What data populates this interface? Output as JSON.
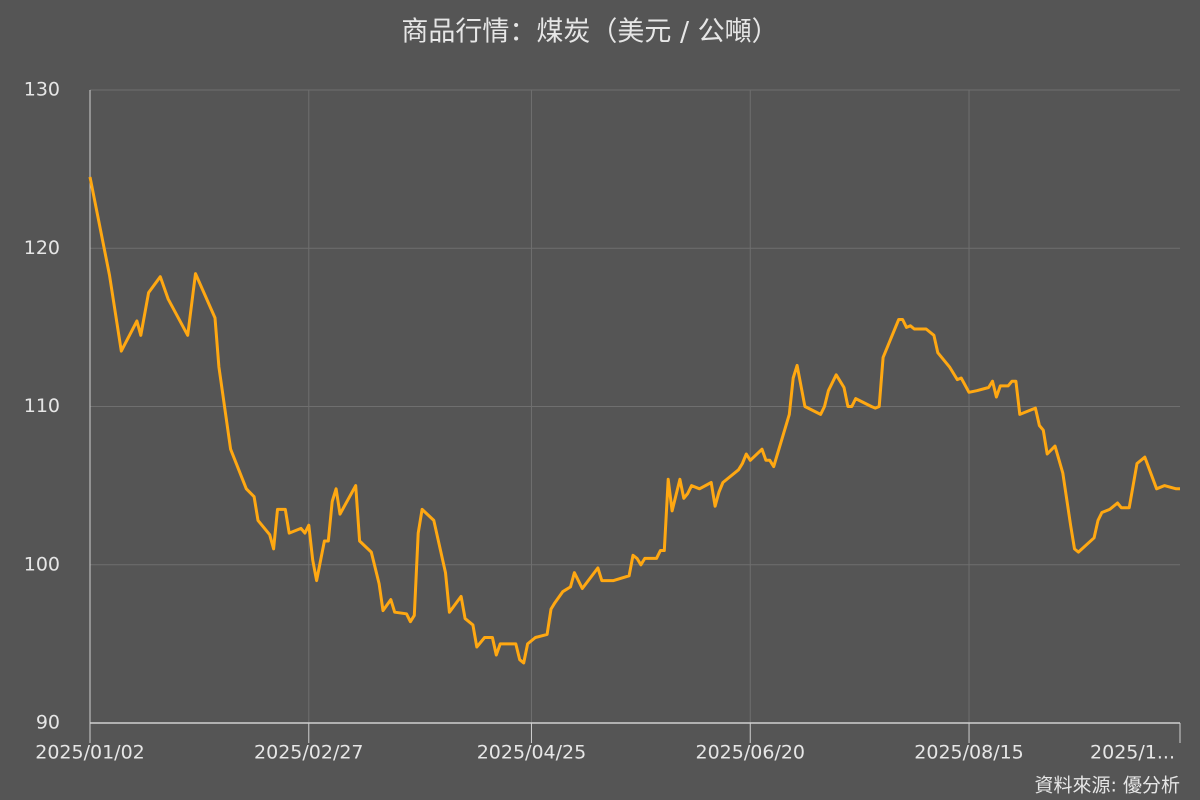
{
  "chart_data": {
    "type": "line",
    "title": "商品行情：煤炭（美元 / 公噸）",
    "source": "資料來源: 優分析",
    "xlim": [
      "2025/01/02",
      "2025/10/08"
    ],
    "xticks": [
      "2025/01/02",
      "2025/02/27",
      "2025/04/25",
      "2025/06/20",
      "2025/08/15",
      {
        "value": "2025/10/10",
        "label": "2025/1..."
      }
    ],
    "ylim": [
      90,
      130
    ],
    "yticks": [
      90,
      100,
      110,
      120,
      130
    ],
    "grid": true,
    "x": [
      "2025/01/02",
      "2025/01/07",
      "2025/01/10",
      "2025/01/14",
      "2025/01/15",
      "2025/01/17",
      "2025/01/20",
      "2025/01/22",
      "2025/01/27",
      "2025/01/29",
      "2025/02/03",
      "2025/02/04",
      "2025/02/07",
      "2025/02/11",
      "2025/02/13",
      "2025/02/14",
      "2025/02/17",
      "2025/02/18",
      "2025/02/19",
      "2025/02/21",
      "2025/02/22",
      "2025/02/25",
      "2025/02/26",
      "2025/02/27",
      "2025/02/28",
      "2025/03/01",
      "2025/03/03",
      "2025/03/04",
      "2025/03/05",
      "2025/03/06",
      "2025/03/07",
      "2025/03/11",
      "2025/03/12",
      "2025/03/15",
      "2025/03/17",
      "2025/03/18",
      "2025/03/20",
      "2025/03/21",
      "2025/03/24",
      "2025/03/25",
      "2025/03/26",
      "2025/03/27",
      "2025/03/28",
      "2025/03/31",
      "2025/04/03",
      "2025/04/04",
      "2025/04/07",
      "2025/04/08",
      "2025/04/10",
      "2025/04/11",
      "2025/04/13",
      "2025/04/15",
      "2025/04/16",
      "2025/04/17",
      "2025/04/21",
      "2025/04/22",
      "2025/04/23",
      "2025/04/24",
      "2025/04/26",
      "2025/04/29",
      "2025/04/30",
      "2025/05/01",
      "2025/05/03",
      "2025/05/05",
      "2025/05/06",
      "2025/05/08",
      "2025/05/12",
      "2025/05/13",
      "2025/05/16",
      "2025/05/20",
      "2025/05/21",
      "2025/05/22",
      "2025/05/23",
      "2025/05/24",
      "2025/05/27",
      "2025/05/28",
      "2025/05/29",
      "2025/05/30",
      "2025/05/31",
      "2025/06/02",
      "2025/06/03",
      "2025/06/04",
      "2025/06/05",
      "2025/06/07",
      "2025/06/10",
      "2025/06/11",
      "2025/06/12",
      "2025/06/13",
      "2025/06/17",
      "2025/06/18",
      "2025/06/19",
      "2025/06/20",
      "2025/06/23",
      "2025/06/24",
      "2025/06/25",
      "2025/06/26",
      "2025/06/30",
      "2025/07/01",
      "2025/07/02",
      "2025/07/04",
      "2025/07/08",
      "2025/07/09",
      "2025/07/10",
      "2025/07/12",
      "2025/07/14",
      "2025/07/15",
      "2025/07/16",
      "2025/07/17",
      "2025/07/21",
      "2025/07/22",
      "2025/07/23",
      "2025/07/24",
      "2025/07/28",
      "2025/07/29",
      "2025/07/30",
      "2025/07/31",
      "2025/08/01",
      "2025/08/04",
      "2025/08/06",
      "2025/08/07",
      "2025/08/10",
      "2025/08/12",
      "2025/08/13",
      "2025/08/15",
      "2025/08/17",
      "2025/08/20",
      "2025/08/21",
      "2025/08/22",
      "2025/08/23",
      "2025/08/25",
      "2025/08/26",
      "2025/08/27",
      "2025/08/28",
      "2025/09/01",
      "2025/09/02",
      "2025/09/03",
      "2025/09/04",
      "2025/09/06",
      "2025/09/08",
      "2025/09/10",
      "2025/09/11",
      "2025/09/12",
      "2025/09/16",
      "2025/09/17",
      "2025/09/18",
      "2025/09/20",
      "2025/09/22",
      "2025/09/23",
      "2025/09/25",
      "2025/09/27",
      "2025/09/29",
      "2025/10/02",
      "2025/10/04",
      "2025/10/07",
      "2025/10/08"
    ],
    "series": [
      {
        "name": "煤炭",
        "color": "#ffa812",
        "values": [
          124.5,
          118.3,
          113.5,
          115.4,
          114.5,
          117.2,
          118.2,
          116.8,
          114.5,
          118.4,
          115.6,
          112.5,
          107.3,
          104.8,
          104.3,
          102.8,
          101.9,
          101.0,
          103.5,
          103.5,
          102.0,
          102.3,
          102.0,
          102.5,
          100.3,
          99.0,
          101.5,
          101.5,
          104.0,
          104.8,
          103.2,
          105.0,
          101.5,
          100.8,
          98.8,
          97.1,
          97.8,
          97.0,
          96.9,
          96.4,
          96.8,
          102.0,
          103.5,
          102.8,
          99.5,
          97.0,
          98.0,
          96.6,
          96.2,
          94.8,
          95.4,
          95.4,
          94.3,
          95.0,
          95.0,
          94.0,
          93.8,
          95.0,
          95.4,
          95.6,
          97.2,
          97.6,
          98.3,
          98.6,
          99.5,
          98.5,
          99.8,
          99.0,
          99.0,
          99.3,
          100.6,
          100.4,
          100.0,
          100.4,
          100.4,
          100.9,
          100.9,
          105.4,
          103.4,
          105.4,
          104.2,
          104.5,
          105.0,
          104.8,
          105.2,
          103.7,
          104.6,
          105.2,
          106.0,
          106.4,
          107.0,
          106.6,
          107.3,
          106.6,
          106.6,
          106.2,
          109.5,
          111.8,
          112.6,
          110.0,
          109.5,
          110.0,
          111.0,
          112.0,
          111.2,
          110.0,
          110.0,
          110.5,
          110.0,
          109.9,
          110.0,
          113.1,
          115.5,
          115.5,
          115.0,
          115.1,
          114.9,
          114.9,
          114.5,
          113.4,
          112.5,
          111.7,
          111.8,
          110.9,
          111.0,
          111.2,
          111.6,
          110.6,
          111.3,
          111.3,
          111.6,
          111.6,
          109.5,
          109.9,
          108.8,
          108.5,
          107.0,
          107.5,
          105.8,
          102.5,
          101.0,
          100.8,
          101.7,
          102.8,
          103.3,
          103.5,
          103.9,
          103.6,
          103.6,
          106.4,
          106.8,
          104.8,
          105.0,
          104.8,
          104.8
        ]
      }
    ]
  }
}
